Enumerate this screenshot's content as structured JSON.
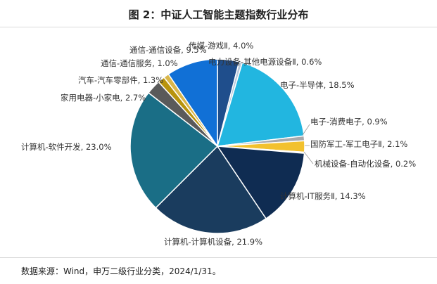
{
  "title": "图 2：中证人工智能主题指数行业分布",
  "source": "数据来源：Wind，申万二级行业分类，2024/1/31。",
  "chart_data": {
    "type": "pie",
    "title": "图 2：中证人工智能主题指数行业分布",
    "slices": [
      {
        "label": "传媒-游戏Ⅱ",
        "value": 4.0,
        "display": "传媒-游戏Ⅱ, 4.0%",
        "color": "#1f4e8c"
      },
      {
        "label": "电力设备-其他电源设备Ⅱ",
        "value": 0.6,
        "display": "电力设备-其他电源设备Ⅱ, 0.6%",
        "color": "#b9c9dc"
      },
      {
        "label": "电子-半导体",
        "value": 18.5,
        "display": "电子-半导体, 18.5%",
        "color": "#22b6e0"
      },
      {
        "label": "电子-消费电子",
        "value": 0.9,
        "display": "电子-消费电子, 0.9%",
        "color": "#a7a9ac"
      },
      {
        "label": "国防军工-军工电子Ⅱ",
        "value": 2.1,
        "display": "国防军工-军工电子Ⅱ, 2.1%",
        "color": "#f2c12e"
      },
      {
        "label": "机械设备-自动化设备",
        "value": 0.2,
        "display": "机械设备-自动化设备, 0.2%",
        "color": "#8dc6e8"
      },
      {
        "label": "计算机-IT服务Ⅱ",
        "value": 14.3,
        "display": "计算机-IT服务Ⅱ, 14.3%",
        "color": "#0f2c52"
      },
      {
        "label": "计算机-计算机设备",
        "value": 21.9,
        "display": "计算机-计算机设备, 21.9%",
        "color": "#1a3c5e"
      },
      {
        "label": "计算机-软件开发",
        "value": 23.0,
        "display": "计算机-软件开发, 23.0%",
        "color": "#1a6e86"
      },
      {
        "label": "家用电器-小家电",
        "value": 2.7,
        "display": "家用电器-小家电, 2.7%",
        "color": "#5a5a5a"
      },
      {
        "label": "汽车-汽车零部件",
        "value": 1.3,
        "display": "汽车-汽车零部件, 1.3%",
        "color": "#b8930c"
      },
      {
        "label": "通信-通信服务",
        "value": 1.0,
        "display": "通信-通信服务, 1.0%",
        "color": "#d9b64a"
      },
      {
        "label": "通信-通信设备",
        "value": 9.5,
        "display": "通信-通信设备, 9.5%",
        "color": "#1170d6"
      }
    ]
  }
}
